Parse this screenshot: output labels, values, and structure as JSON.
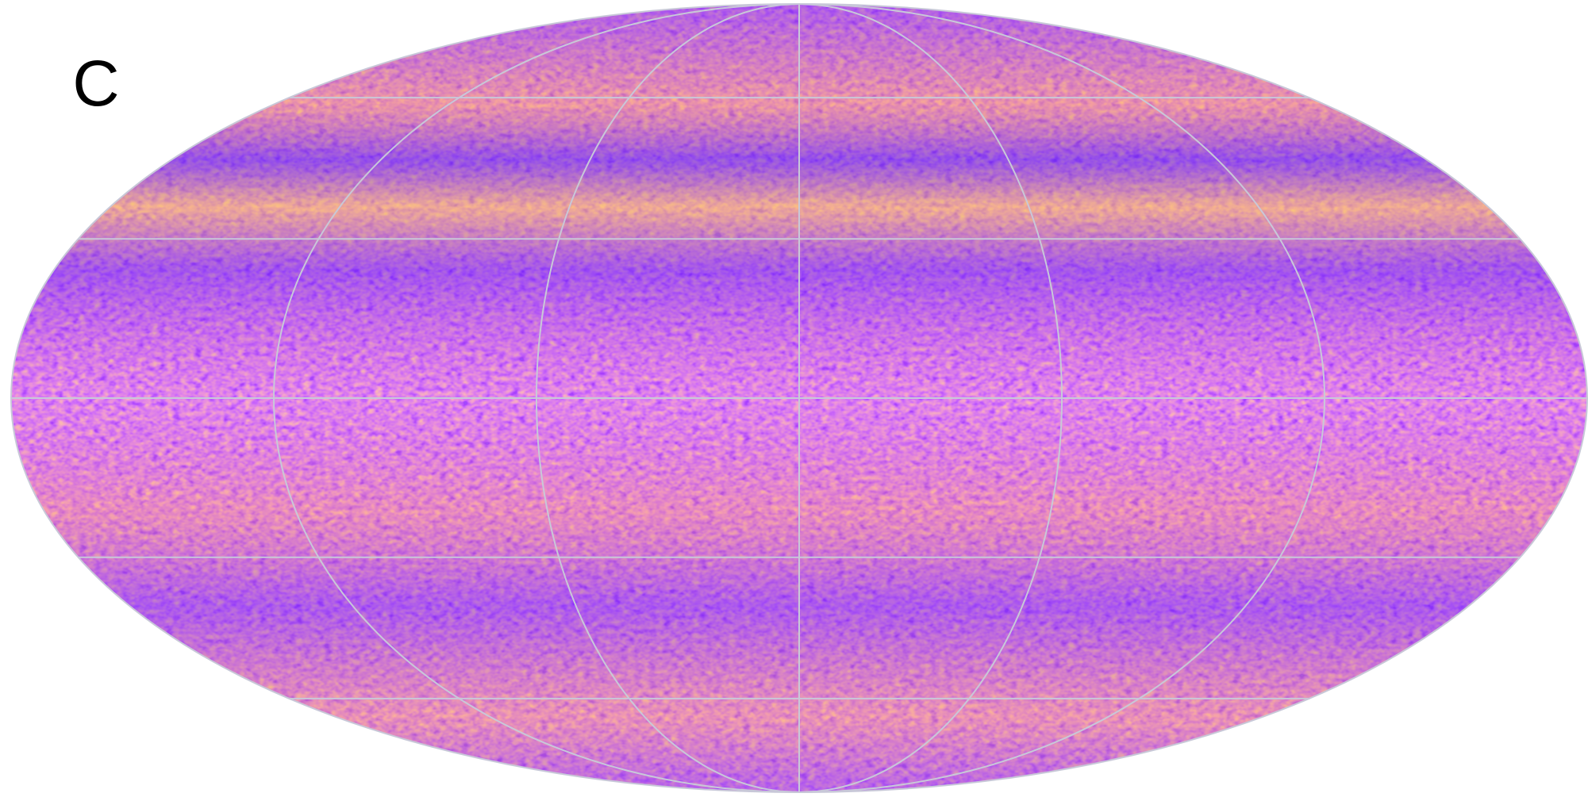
{
  "panel_label": "C"
}
